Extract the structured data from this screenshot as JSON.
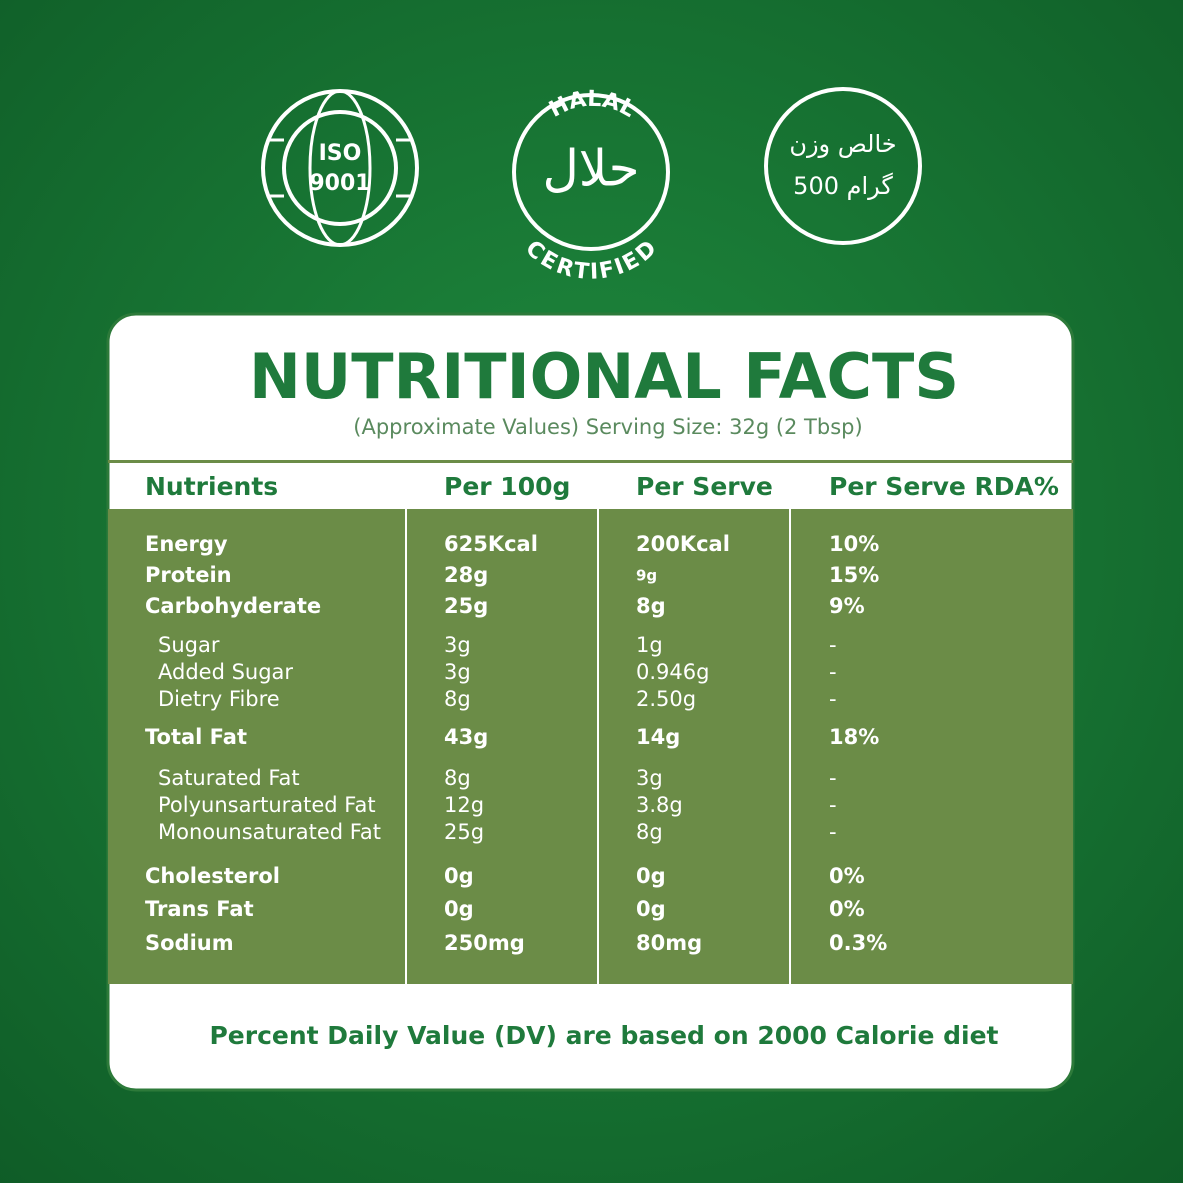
{
  "badges": {
    "iso": {
      "line1": "ISO",
      "line2": "9001"
    },
    "halal": {
      "top": "HALAL",
      "arabic": "حلال",
      "bottom": "CERTIFIED"
    },
    "weight": {
      "line1": "خالص وزن",
      "line2": "500 گرام"
    }
  },
  "title": "NUTRITIONAL FACTS",
  "subtitle": "(Approximate Values) Serving Size: 32g (2 Tbsp)",
  "table": {
    "header": [
      "Nutrients",
      "Per 100g",
      "Per Serve",
      "Per Serve RDA%"
    ],
    "rows": [
      [
        "Energy",
        "625Kcal",
        "200Kcal",
        "10%"
      ],
      [
        "Protein",
        "28g",
        "9g",
        "15%"
      ],
      [
        "Carbohyderate",
        "25g",
        "8g",
        "9%"
      ],
      [
        "Sugar",
        "3g",
        "1g",
        "-"
      ],
      [
        "Added Sugar",
        "3g",
        "0.946g",
        "-"
      ],
      [
        "Dietry Fibre",
        "8g",
        "2.50g",
        "-"
      ],
      [
        "Total Fat",
        "43g",
        "14g",
        "18%"
      ],
      [
        "Saturated Fat",
        "8g",
        "3g",
        "-"
      ],
      [
        "Polyunsarturated Fat",
        "12g",
        "3.8g",
        "-"
      ],
      [
        "Monounsaturated Fat",
        "25g",
        "8g",
        "-"
      ],
      [
        "Cholesterol",
        "0g",
        "0g",
        "0%"
      ],
      [
        "Trans Fat",
        "0g",
        "0g",
        "0%"
      ],
      [
        "Sodium",
        "250mg",
        "80mg",
        "0.3%"
      ]
    ]
  },
  "footer": "Percent Daily Value (DV) are based on 2000 Calorie diet"
}
